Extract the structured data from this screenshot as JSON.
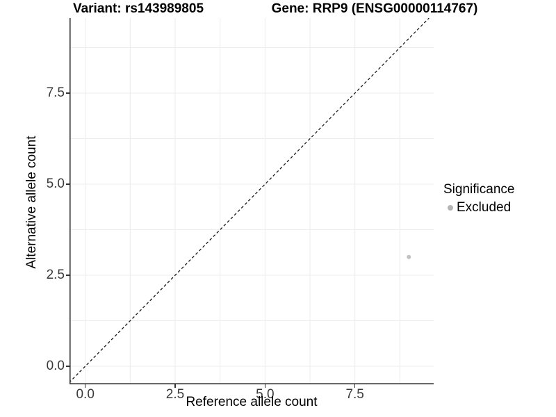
{
  "figure": {
    "title_variant": "Variant: rs143989805",
    "title_gene": "Gene: RRP9 (ENSG00000114767)"
  },
  "x_axis": {
    "label": "Reference allele count",
    "tick_labels": [
      "0.0",
      "2.5",
      "5.0",
      "7.5"
    ],
    "tick_values": [
      0,
      2.5,
      5.0,
      7.5
    ]
  },
  "y_axis": {
    "label": "Alternative allele count",
    "tick_labels": [
      "0.0",
      "2.5",
      "5.0",
      "7.5"
    ],
    "tick_values": [
      0,
      2.5,
      5.0,
      7.5
    ]
  },
  "legend": {
    "title": "Significance",
    "items": [
      {
        "label": "Excluded",
        "color": "#b4b4b4",
        "marker": "circle"
      }
    ]
  },
  "chart_data": {
    "type": "scatter",
    "title": "Variant: rs143989805 | Gene: RRP9 (ENSG00000114767)",
    "xlabel": "Reference allele count",
    "ylabel": "Alternative allele count",
    "xlim": [
      -0.45,
      9.7
    ],
    "ylim": [
      -0.5,
      9.56
    ],
    "grid": {
      "show": true,
      "step": 1.25,
      "color": "#ececec"
    },
    "reference_line": {
      "type": "identity",
      "equation": "y = x",
      "style": "dashed",
      "color": "#1a1a1a"
    },
    "series": [
      {
        "name": "Excluded",
        "color": "#c2c2c2",
        "points": [
          [
            9,
            3
          ]
        ]
      }
    ],
    "legend_position": "right"
  },
  "colors": {
    "background": "#ffffff",
    "axis_line": "#333333",
    "grid_line": "#ececec",
    "tick_text": "#3a3a3a",
    "point": "#c2c2c2",
    "legend_marker": "#b4b4b4"
  }
}
